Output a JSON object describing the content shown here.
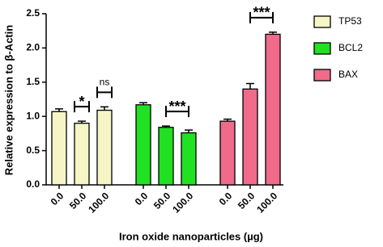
{
  "chart_data": {
    "type": "bar",
    "x_label": "Iron oxide nanoparticles (µg)",
    "y_label": "Relative expression to β-Actin",
    "categories": [
      "0.0",
      "50.0",
      "100.0"
    ],
    "series": [
      {
        "name": "TP53",
        "color": "#f5f5c6",
        "values": [
          1.07,
          0.9,
          1.09
        ],
        "errors": [
          0.04,
          0.03,
          0.05
        ]
      },
      {
        "name": "BCL2",
        "color": "#22e022",
        "values": [
          1.17,
          0.84,
          0.76
        ],
        "errors": [
          0.03,
          0.02,
          0.04
        ]
      },
      {
        "name": "BAX",
        "color": "#f06a8a",
        "values": [
          0.93,
          1.4,
          2.2
        ],
        "errors": [
          0.03,
          0.08,
          0.03
        ]
      }
    ],
    "annotations": [
      {
        "label": "*",
        "series": 0,
        "from": 1,
        "to": 1
      },
      {
        "label": "ns",
        "series": 0,
        "from": 2,
        "to": 2
      },
      {
        "label": "***",
        "series": 1,
        "from": 1,
        "to": 2
      },
      {
        "label": "***",
        "series": 2,
        "from": 1,
        "to": 2
      }
    ],
    "ylim": [
      0,
      2.5
    ],
    "yticks": [
      {
        "value": 0,
        "label": "0.0"
      },
      {
        "value": 0.5,
        "label": "0.5"
      },
      {
        "value": 1,
        "label": "1.0"
      },
      {
        "value": 1.5,
        "label": "1.5"
      },
      {
        "value": 2,
        "label": "2.0"
      },
      {
        "value": 2.5,
        "label": "2.5"
      }
    ],
    "legend": "right"
  }
}
